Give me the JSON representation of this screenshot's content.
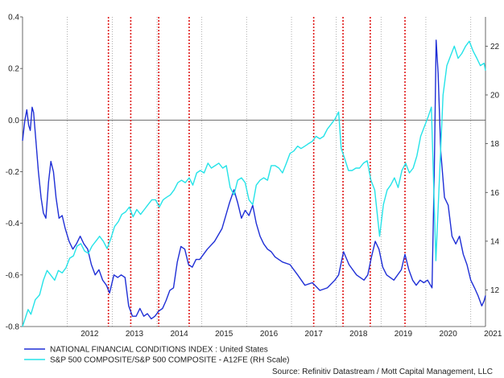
{
  "chart_data": {
    "type": "line",
    "title": "",
    "source": "Source: Refinitiv Datastream / Mott Capital Management, LLC",
    "colors": {
      "nfci": "#1f2fd6",
      "spx": "#25e3e8",
      "event": "#e01818",
      "zero": "#555555",
      "grid": "#9a9a9a"
    },
    "x_axis": {
      "type": "date",
      "range": [
        "2011-01-01",
        "2021-05-01"
      ],
      "tick_labels": [
        "2012",
        "2013",
        "2014",
        "2015",
        "2016",
        "2017",
        "2018",
        "2019",
        "2020",
        "2021"
      ]
    },
    "y_left": {
      "range": [
        -0.8,
        0.4
      ],
      "ticks": [
        "0.4",
        "0.2",
        "0.0",
        "-0.2",
        "-0.4",
        "-0.6",
        "-0.8"
      ],
      "reference_line": 0.0
    },
    "y_right": {
      "range": [
        10.5,
        23.2
      ],
      "ticks": [
        "22",
        "20",
        "18",
        "16",
        "14",
        "12"
      ],
      "label": "RH Scale"
    },
    "legend_placement": "bottom-left",
    "grid": "vertical dotted lines at year boundaries",
    "event_lines": [
      "2012-12-01",
      "2013-06-01",
      "2014-01-15",
      "2014-09-20",
      "2017-07-01",
      "2018-02-25",
      "2018-10-05",
      "2019-07-15"
    ],
    "series": [
      {
        "name": "NATIONAL FINANCIAL CONDITIONS INDEX : United States",
        "axis": "left",
        "points": [
          [
            "2011-01-01",
            -0.08
          ],
          [
            "2011-01-20",
            0.0
          ],
          [
            "2011-02-05",
            0.04
          ],
          [
            "2011-02-20",
            -0.02
          ],
          [
            "2011-03-05",
            -0.04
          ],
          [
            "2011-03-20",
            0.05
          ],
          [
            "2011-04-01",
            0.03
          ],
          [
            "2011-04-20",
            -0.08
          ],
          [
            "2011-05-10",
            -0.2
          ],
          [
            "2011-06-01",
            -0.3
          ],
          [
            "2011-06-20",
            -0.36
          ],
          [
            "2011-07-10",
            -0.38
          ],
          [
            "2011-08-01",
            -0.24
          ],
          [
            "2011-08-20",
            -0.16
          ],
          [
            "2011-09-10",
            -0.2
          ],
          [
            "2011-10-01",
            -0.3
          ],
          [
            "2011-10-25",
            -0.38
          ],
          [
            "2011-11-20",
            -0.37
          ],
          [
            "2011-12-15",
            -0.42
          ],
          [
            "2012-01-15",
            -0.47
          ],
          [
            "2012-02-15",
            -0.5
          ],
          [
            "2012-03-15",
            -0.48
          ],
          [
            "2012-04-15",
            -0.45
          ],
          [
            "2012-05-15",
            -0.48
          ],
          [
            "2012-06-15",
            -0.5
          ],
          [
            "2012-07-15",
            -0.56
          ],
          [
            "2012-08-15",
            -0.6
          ],
          [
            "2012-09-15",
            -0.58
          ],
          [
            "2012-10-15",
            -0.62
          ],
          [
            "2012-11-15",
            -0.64
          ],
          [
            "2012-12-10",
            -0.67
          ],
          [
            "2013-01-15",
            -0.6
          ],
          [
            "2013-02-15",
            -0.61
          ],
          [
            "2013-03-15",
            -0.6
          ],
          [
            "2013-04-15",
            -0.61
          ],
          [
            "2013-05-15",
            -0.72
          ],
          [
            "2013-06-15",
            -0.76
          ],
          [
            "2013-07-15",
            -0.76
          ],
          [
            "2013-08-15",
            -0.73
          ],
          [
            "2013-09-15",
            -0.76
          ],
          [
            "2013-10-15",
            -0.75
          ],
          [
            "2013-11-15",
            -0.77
          ],
          [
            "2013-12-15",
            -0.76
          ],
          [
            "2014-01-15",
            -0.74
          ],
          [
            "2014-02-15",
            -0.73
          ],
          [
            "2014-03-15",
            -0.7
          ],
          [
            "2014-04-15",
            -0.66
          ],
          [
            "2014-05-15",
            -0.65
          ],
          [
            "2014-06-15",
            -0.55
          ],
          [
            "2014-07-15",
            -0.49
          ],
          [
            "2014-08-15",
            -0.5
          ],
          [
            "2014-09-15",
            -0.56
          ],
          [
            "2014-10-15",
            -0.57
          ],
          [
            "2014-11-15",
            -0.54
          ],
          [
            "2014-12-15",
            -0.54
          ],
          [
            "2015-02-15",
            -0.5
          ],
          [
            "2015-04-15",
            -0.47
          ],
          [
            "2015-06-15",
            -0.42
          ],
          [
            "2015-08-15",
            -0.32
          ],
          [
            "2015-09-20",
            -0.27
          ],
          [
            "2015-10-20",
            -0.32
          ],
          [
            "2015-11-20",
            -0.38
          ],
          [
            "2015-12-20",
            -0.35
          ],
          [
            "2016-01-20",
            -0.37
          ],
          [
            "2016-02-20",
            -0.33
          ],
          [
            "2016-03-20",
            -0.4
          ],
          [
            "2016-04-20",
            -0.45
          ],
          [
            "2016-05-20",
            -0.48
          ],
          [
            "2016-06-20",
            -0.5
          ],
          [
            "2016-07-20",
            -0.51
          ],
          [
            "2016-08-20",
            -0.53
          ],
          [
            "2016-10-20",
            -0.55
          ],
          [
            "2016-12-20",
            -0.56
          ],
          [
            "2017-02-20",
            -0.6
          ],
          [
            "2017-04-20",
            -0.64
          ],
          [
            "2017-06-20",
            -0.63
          ],
          [
            "2017-08-20",
            -0.66
          ],
          [
            "2017-10-20",
            -0.65
          ],
          [
            "2017-12-20",
            -0.62
          ],
          [
            "2018-01-20",
            -0.6
          ],
          [
            "2018-03-01",
            -0.51
          ],
          [
            "2018-04-15",
            -0.56
          ],
          [
            "2018-06-15",
            -0.6
          ],
          [
            "2018-08-15",
            -0.62
          ],
          [
            "2018-09-15",
            -0.6
          ],
          [
            "2018-10-15",
            -0.53
          ],
          [
            "2018-11-15",
            -0.47
          ],
          [
            "2018-12-15",
            -0.5
          ],
          [
            "2019-01-15",
            -0.57
          ],
          [
            "2019-02-15",
            -0.6
          ],
          [
            "2019-04-15",
            -0.62
          ],
          [
            "2019-06-15",
            -0.58
          ],
          [
            "2019-07-15",
            -0.52
          ],
          [
            "2019-08-15",
            -0.58
          ],
          [
            "2019-09-15",
            -0.62
          ],
          [
            "2019-10-15",
            -0.64
          ],
          [
            "2019-11-15",
            -0.62
          ],
          [
            "2019-12-15",
            -0.63
          ],
          [
            "2020-01-15",
            -0.62
          ],
          [
            "2020-02-20",
            -0.65
          ],
          [
            "2020-03-10",
            -0.2
          ],
          [
            "2020-03-25",
            0.31
          ],
          [
            "2020-04-10",
            0.18
          ],
          [
            "2020-05-01",
            -0.12
          ],
          [
            "2020-06-01",
            -0.3
          ],
          [
            "2020-07-01",
            -0.33
          ],
          [
            "2020-08-01",
            -0.45
          ],
          [
            "2020-09-01",
            -0.48
          ],
          [
            "2020-10-01",
            -0.45
          ],
          [
            "2020-11-01",
            -0.52
          ],
          [
            "2020-12-01",
            -0.56
          ],
          [
            "2021-01-01",
            -0.62
          ],
          [
            "2021-02-01",
            -0.65
          ],
          [
            "2021-03-01",
            -0.68
          ],
          [
            "2021-04-01",
            -0.72
          ],
          [
            "2021-04-20",
            -0.7
          ],
          [
            "2021-05-01",
            -0.68
          ]
        ]
      },
      {
        "name": "S&P 500 COMPOSITE/S&P 500 COMPOSITE - A12FE (RH Scale)",
        "axis": "right",
        "points": [
          [
            "2011-01-01",
            10.5
          ],
          [
            "2011-02-15",
            11.2
          ],
          [
            "2011-03-10",
            11.0
          ],
          [
            "2011-04-15",
            11.6
          ],
          [
            "2011-05-20",
            11.8
          ],
          [
            "2011-06-20",
            12.4
          ],
          [
            "2011-07-20",
            12.8
          ],
          [
            "2011-08-20",
            12.6
          ],
          [
            "2011-09-20",
            12.4
          ],
          [
            "2011-10-20",
            12.8
          ],
          [
            "2011-11-20",
            12.7
          ],
          [
            "2011-12-20",
            12.9
          ],
          [
            "2012-01-20",
            13.3
          ],
          [
            "2012-02-20",
            13.4
          ],
          [
            "2012-03-20",
            13.8
          ],
          [
            "2012-04-20",
            13.9
          ],
          [
            "2012-05-20",
            13.6
          ],
          [
            "2012-06-20",
            13.5
          ],
          [
            "2012-07-20",
            13.8
          ],
          [
            "2012-08-20",
            14.0
          ],
          [
            "2012-09-20",
            14.2
          ],
          [
            "2012-10-20",
            14.0
          ],
          [
            "2012-11-20",
            13.7
          ],
          [
            "2012-12-20",
            14.1
          ],
          [
            "2013-01-20",
            14.6
          ],
          [
            "2013-02-20",
            14.8
          ],
          [
            "2013-03-20",
            15.1
          ],
          [
            "2013-04-20",
            15.2
          ],
          [
            "2013-05-20",
            15.4
          ],
          [
            "2013-06-20",
            15.0
          ],
          [
            "2013-07-20",
            15.3
          ],
          [
            "2013-08-20",
            15.1
          ],
          [
            "2013-09-20",
            15.3
          ],
          [
            "2013-10-20",
            15.5
          ],
          [
            "2013-11-20",
            15.7
          ],
          [
            "2013-12-20",
            15.7
          ],
          [
            "2014-01-20",
            15.4
          ],
          [
            "2014-02-20",
            15.7
          ],
          [
            "2014-03-20",
            15.8
          ],
          [
            "2014-04-20",
            15.9
          ],
          [
            "2014-05-20",
            16.1
          ],
          [
            "2014-06-20",
            16.4
          ],
          [
            "2014-07-20",
            16.5
          ],
          [
            "2014-08-20",
            16.4
          ],
          [
            "2014-09-20",
            16.6
          ],
          [
            "2014-10-20",
            16.3
          ],
          [
            "2014-11-20",
            16.8
          ],
          [
            "2014-12-20",
            16.9
          ],
          [
            "2015-01-20",
            16.8
          ],
          [
            "2015-02-20",
            17.2
          ],
          [
            "2015-03-20",
            17.0
          ],
          [
            "2015-04-20",
            17.1
          ],
          [
            "2015-05-20",
            17.2
          ],
          [
            "2015-06-20",
            17.0
          ],
          [
            "2015-07-20",
            17.1
          ],
          [
            "2015-08-20",
            16.2
          ],
          [
            "2015-09-20",
            15.9
          ],
          [
            "2015-10-20",
            16.5
          ],
          [
            "2015-11-20",
            16.6
          ],
          [
            "2015-12-20",
            16.4
          ],
          [
            "2016-01-20",
            15.7
          ],
          [
            "2016-02-20",
            15.5
          ],
          [
            "2016-03-20",
            16.3
          ],
          [
            "2016-04-20",
            16.5
          ],
          [
            "2016-05-20",
            16.6
          ],
          [
            "2016-06-20",
            16.5
          ],
          [
            "2016-07-20",
            17.1
          ],
          [
            "2016-08-20",
            17.1
          ],
          [
            "2016-09-20",
            17.0
          ],
          [
            "2016-10-20",
            16.8
          ],
          [
            "2016-11-20",
            17.2
          ],
          [
            "2016-12-20",
            17.6
          ],
          [
            "2017-01-20",
            17.7
          ],
          [
            "2017-02-20",
            17.9
          ],
          [
            "2017-03-20",
            17.8
          ],
          [
            "2017-04-20",
            17.9
          ],
          [
            "2017-05-20",
            18.0
          ],
          [
            "2017-06-20",
            18.1
          ],
          [
            "2017-07-20",
            18.3
          ],
          [
            "2017-08-20",
            18.2
          ],
          [
            "2017-09-20",
            18.3
          ],
          [
            "2017-10-20",
            18.6
          ],
          [
            "2017-11-20",
            18.8
          ],
          [
            "2017-12-20",
            19.0
          ],
          [
            "2018-01-20",
            19.3
          ],
          [
            "2018-02-10",
            17.8
          ],
          [
            "2018-03-10",
            17.4
          ],
          [
            "2018-04-10",
            16.9
          ],
          [
            "2018-05-10",
            16.9
          ],
          [
            "2018-06-10",
            17.0
          ],
          [
            "2018-07-10",
            17.0
          ],
          [
            "2018-08-10",
            17.2
          ],
          [
            "2018-09-10",
            17.3
          ],
          [
            "2018-10-10",
            16.5
          ],
          [
            "2018-11-10",
            16.1
          ],
          [
            "2018-12-20",
            14.2
          ],
          [
            "2019-01-20",
            15.5
          ],
          [
            "2019-02-20",
            16.1
          ],
          [
            "2019-03-20",
            16.3
          ],
          [
            "2019-04-20",
            16.6
          ],
          [
            "2019-05-20",
            16.2
          ],
          [
            "2019-06-20",
            16.9
          ],
          [
            "2019-07-20",
            17.2
          ],
          [
            "2019-08-20",
            16.8
          ],
          [
            "2019-09-20",
            17.0
          ],
          [
            "2019-10-20",
            17.5
          ],
          [
            "2019-11-20",
            18.3
          ],
          [
            "2019-12-20",
            18.7
          ],
          [
            "2020-01-20",
            19.1
          ],
          [
            "2020-02-15",
            19.5
          ],
          [
            "2020-03-23",
            13.2
          ],
          [
            "2020-04-20",
            16.5
          ],
          [
            "2020-05-20",
            20.0
          ],
          [
            "2020-06-20",
            21.2
          ],
          [
            "2020-07-20",
            21.6
          ],
          [
            "2020-08-20",
            22.0
          ],
          [
            "2020-09-20",
            21.5
          ],
          [
            "2020-10-20",
            21.7
          ],
          [
            "2020-11-20",
            22.0
          ],
          [
            "2020-12-20",
            22.2
          ],
          [
            "2021-01-20",
            21.8
          ],
          [
            "2021-02-20",
            21.5
          ],
          [
            "2021-03-20",
            21.2
          ],
          [
            "2021-04-20",
            21.3
          ],
          [
            "2021-05-01",
            21.0
          ]
        ]
      }
    ]
  }
}
